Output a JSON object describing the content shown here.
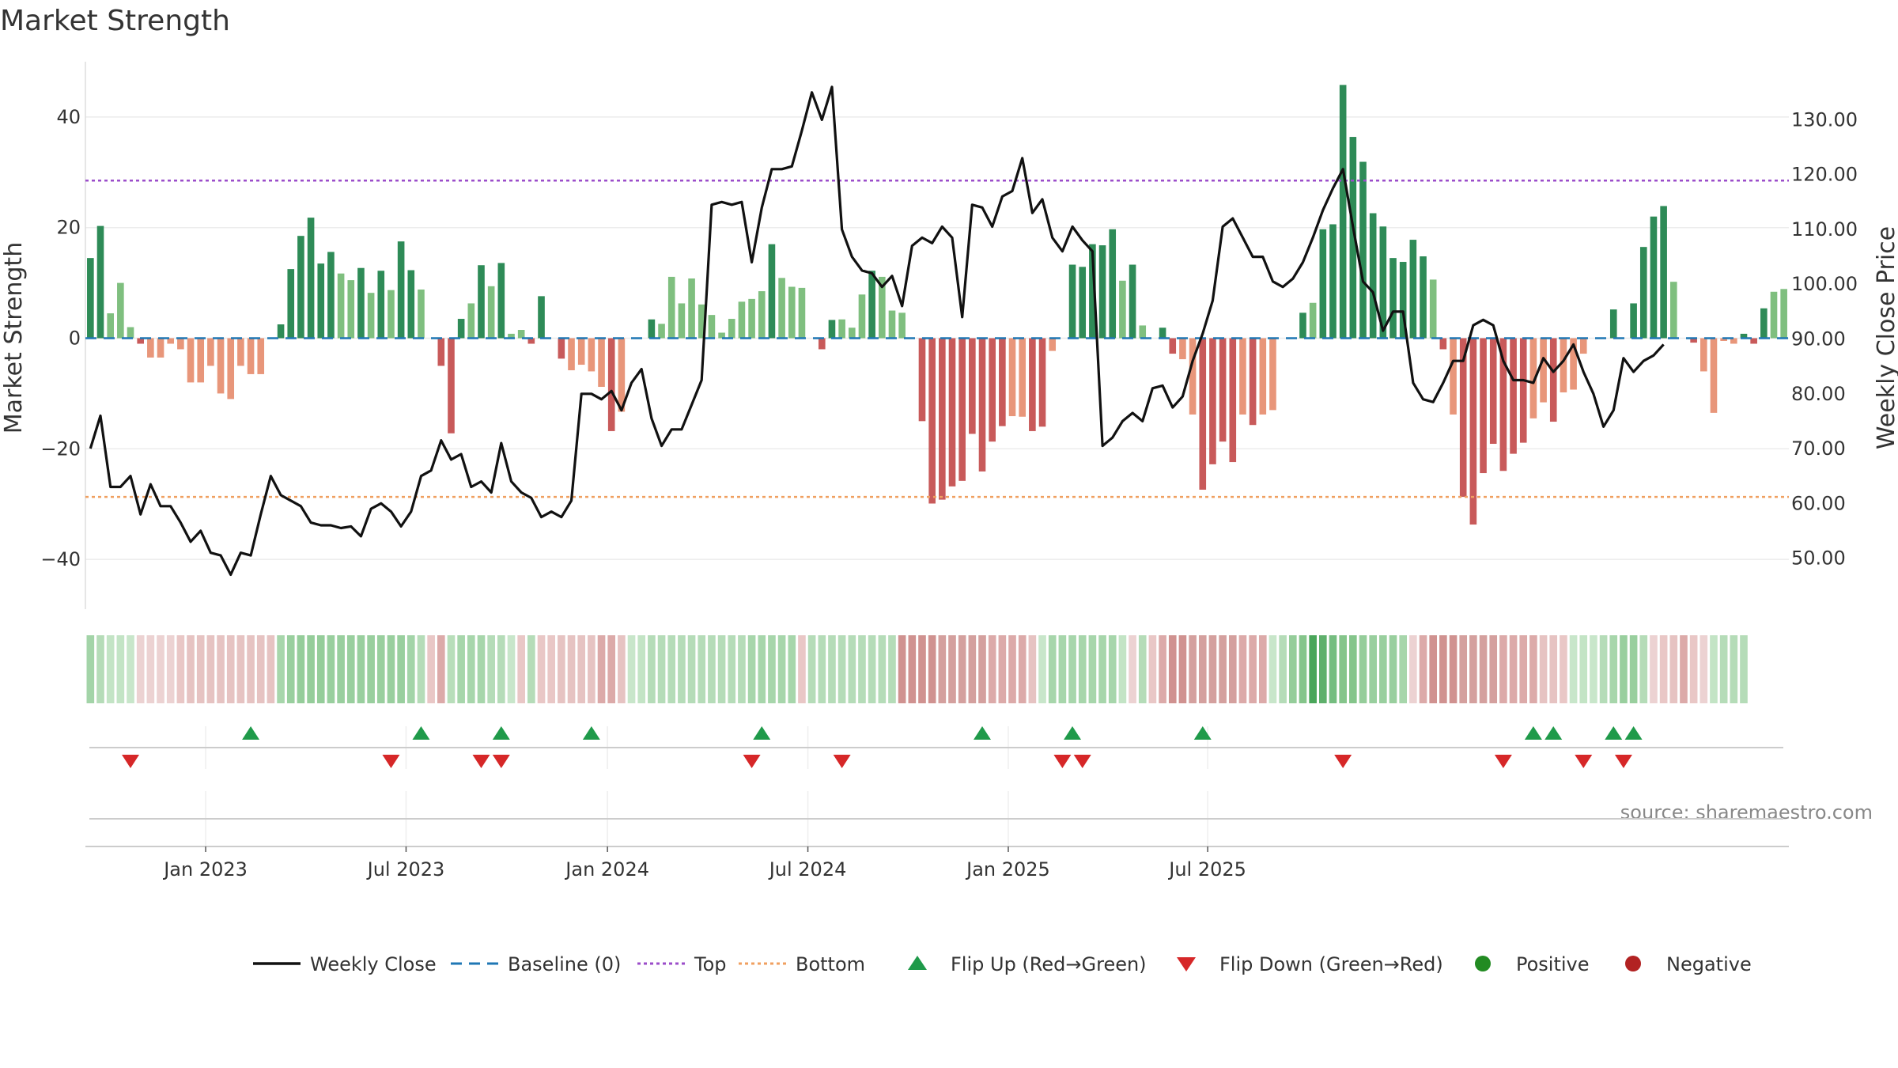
{
  "chart_data": {
    "type": "bar",
    "title": "Market Strength",
    "ylabel_left": "Market Strength",
    "ylabel_right": "Weekly Close Price",
    "ylim_left": [
      -49,
      50
    ],
    "yticks_left": [
      -40,
      -20,
      0,
      20,
      40
    ],
    "ytick_labels_left": [
      "−40",
      "−20",
      "0",
      "20",
      "40"
    ],
    "ylim_right": [
      40.7,
      140.6
    ],
    "yticks_right": [
      50,
      60,
      70,
      80,
      90,
      100,
      110,
      120,
      130
    ],
    "ytick_labels_right": [
      "50.00",
      "60.00",
      "70.00",
      "80.00",
      "90.00",
      "100.00",
      "110.00",
      "120.00",
      "130.00"
    ],
    "top_level": 28.5,
    "bottom_level": -28.7,
    "baseline": 0,
    "x_tick_index": [
      11.5,
      31.5,
      51.6,
      71.6,
      91.6,
      111.5
    ],
    "x_tick_labels": [
      "Jan 2023",
      "Jul 2023",
      "Jan 2024",
      "Jul 2024",
      "Jan 2025",
      "Jul 2025"
    ],
    "strength": [
      14.5,
      20.3,
      4.5,
      10,
      2,
      -1,
      -3.5,
      -3.5,
      -1,
      -2,
      -8,
      -8,
      -5,
      -10,
      -11,
      -5,
      -6.5,
      -6.5,
      0,
      2.5,
      12.5,
      18.5,
      21.8,
      13.5,
      15.6,
      11.7,
      10.5,
      12.7,
      8.2,
      12.2,
      8.7,
      17.5,
      12.3,
      8.8,
      0,
      -5,
      -17.2,
      3.5,
      6.3,
      13.2,
      9.4,
      13.6,
      0.8,
      1.5,
      -1,
      7.6,
      0,
      -3.7,
      -5.8,
      -4.8,
      -6,
      -8.8,
      -16.8,
      -13.3,
      0,
      0,
      3.4,
      2.6,
      11.1,
      6.3,
      10.8,
      6.1,
      4.2,
      1,
      3.5,
      6.6,
      7.1,
      8.5,
      17,
      10.9,
      9.3,
      9.1,
      0,
      -2,
      3.3,
      3.4,
      1.9,
      7.9,
      12.2,
      11.1,
      5,
      4.6,
      0,
      -15,
      -29.9,
      -29.2,
      -26.8,
      -25.8,
      -17.3,
      -24.1,
      -18.7,
      -15.9,
      -14.1,
      -14.2,
      -16.8,
      -16,
      -2.3,
      0,
      13.3,
      12.9,
      17,
      16.8,
      19.7,
      10.4,
      13.3,
      2.3,
      0,
      1.9,
      -2.8,
      -3.8,
      -13.8,
      -27.4,
      -22.8,
      -18.7,
      -22.4,
      -13.8,
      -15.7,
      -13.8,
      -13,
      0,
      0,
      4.6,
      6.4,
      19.7,
      20.6,
      45.8,
      36.4,
      31.9,
      22.6,
      20.2,
      14.5,
      13.8,
      17.8,
      14.8,
      10.6,
      -2,
      -13.8,
      -28.7,
      -33.7,
      -24.4,
      -19.1,
      -24,
      -20.9,
      -18.9,
      -14.5,
      -11.6,
      -15.1,
      -9.8,
      -9.3,
      -2.8,
      0,
      0,
      5.2,
      0,
      6.3,
      16.5,
      22,
      23.9,
      10.2,
      0,
      -0.8,
      -6,
      -13.5,
      -0.5,
      -1,
      0.8,
      -1,
      5.4,
      8.4,
      8.9
    ],
    "close": [
      70,
      76,
      63,
      63,
      65,
      58,
      63.5,
      59.5,
      59.5,
      56.5,
      53,
      55,
      51,
      50.5,
      47,
      51,
      50.5,
      58,
      65,
      61.5,
      60.5,
      59.5,
      56.5,
      56,
      56,
      55.5,
      55.8,
      54,
      59,
      60,
      58.5,
      55.8,
      58.5,
      65,
      66,
      71.5,
      68,
      69,
      63,
      64,
      62,
      71,
      64,
      62,
      61,
      57.5,
      58.5,
      57.5,
      60.5,
      80,
      80,
      79,
      80.5,
      77,
      82,
      84.5,
      75.5,
      70.5,
      73.5,
      73.5,
      78,
      82.5,
      114.5,
      115,
      114.5,
      115,
      104,
      114,
      121,
      121,
      121.5,
      128,
      135,
      130,
      136,
      110,
      105,
      102.5,
      102,
      99.5,
      101.5,
      96,
      107,
      108.5,
      107.5,
      110.5,
      108.5,
      94,
      114.5,
      114,
      110.5,
      116,
      117,
      123,
      113,
      115.5,
      108.5,
      106,
      110.5,
      108,
      106,
      70.5,
      72,
      75,
      76.5,
      75,
      81,
      81.5,
      77.5,
      79.5,
      86,
      91,
      97,
      110.5,
      112,
      108.5,
      105,
      105,
      100.5,
      99.5,
      101,
      104,
      108.5,
      113.5,
      117.5,
      121,
      110.5,
      100.5,
      98.5,
      91.5,
      95,
      95,
      82,
      79,
      78.5,
      82,
      86,
      86,
      92.5,
      93.5,
      92.5,
      86,
      82.5,
      82.5,
      82,
      86.5,
      84,
      86,
      89,
      84,
      80,
      74,
      77,
      86.5,
      84,
      86,
      87,
      89
    ],
    "strip_colors": [
      "#a3d4a8",
      "#b5dcb8",
      "#c3e4c5",
      "#c3e4c5",
      "#c8e6ca",
      "#ecd2d2",
      "#ecd2d2",
      "#ecd2d2",
      "#ecd2d2",
      "#e9c7c6",
      "#e6c3c2",
      "#e6c3c2",
      "#e6c3c2",
      "#e6c3c2",
      "#e6c3c2",
      "#e6c3c2",
      "#e6c3c2",
      "#e6c3c2",
      "#e6c3c2",
      "#a7d6ab",
      "#99cf9e",
      "#95cd9a",
      "#95cd9a",
      "#95cd9a",
      "#99cf9e",
      "#99cf9e",
      "#99cf9e",
      "#99cf9e",
      "#99cf9e",
      "#99cf9e",
      "#99cf9e",
      "#99cf9e",
      "#a3d4a8",
      "#b5dcb8",
      "#e9c7c6",
      "#dcaaa9",
      "#b8deba",
      "#a7d6ab",
      "#a7d6ab",
      "#a7d6ab",
      "#b5dcb8",
      "#b5dcb8",
      "#c8e6ca",
      "#e9c7c6",
      "#b5dcb8",
      "#e9c7c6",
      "#e9c7c6",
      "#e6c3c2",
      "#e6c3c2",
      "#e6c3c2",
      "#e6c3c2",
      "#dcaaa9",
      "#dcaaa9",
      "#e6c3c2",
      "#c8e6ca",
      "#c3e4c5",
      "#b5dcb8",
      "#b5dcb8",
      "#b5dcb8",
      "#b5dcb8",
      "#b5dcb8",
      "#b5dcb8",
      "#b5dcb8",
      "#b5dcb8",
      "#b5dcb8",
      "#b5dcb8",
      "#a7d6ab",
      "#a7d6ab",
      "#a7d6ab",
      "#a7d6ab",
      "#a7d6ab",
      "#e9c7c6",
      "#b5dcb8",
      "#b5dcb8",
      "#b5dcb8",
      "#b5dcb8",
      "#b5dcb8",
      "#b5dcb8",
      "#b5dcb8",
      "#b5dcb8",
      "#b5dcb8",
      "#d09290",
      "#d09290",
      "#d09290",
      "#d09290",
      "#d4a09e",
      "#d4a09e",
      "#d4a09e",
      "#d4a09e",
      "#d4a09e",
      "#dcaaa9",
      "#dcaaa9",
      "#dcaaa9",
      "#dcaaa9",
      "#e6c3c2",
      "#c8e6ca",
      "#a7d6ab",
      "#a7d6ab",
      "#a7d6ab",
      "#a7d6ab",
      "#a7d6ab",
      "#a7d6ab",
      "#a7d6ab",
      "#c3e4c5",
      "#ecd2d2",
      "#b5dcb8",
      "#e9c7c6",
      "#dcaaa9",
      "#d09290",
      "#d09290",
      "#d4a09e",
      "#d4a09e",
      "#d4a09e",
      "#d4a09e",
      "#d4a09e",
      "#dcaaa9",
      "#dcaaa9",
      "#dcaaa9",
      "#c8e6ca",
      "#b5dcb8",
      "#95cd9a",
      "#85c58b",
      "#4aa65a",
      "#5fb06c",
      "#75bd80",
      "#85c58b",
      "#85c58b",
      "#95cd9a",
      "#99cf9e",
      "#99cf9e",
      "#99cf9e",
      "#a7d6ab",
      "#ecd2d2",
      "#dcaaa9",
      "#d09290",
      "#d09290",
      "#d09290",
      "#d4a09e",
      "#d4a09e",
      "#d4a09e",
      "#d4a09e",
      "#dcaaa9",
      "#dcaaa9",
      "#dcaaa9",
      "#dcaaa9",
      "#e6c3c2",
      "#e6c3c2",
      "#e9c7c6",
      "#c8e6ca",
      "#c3e4c5",
      "#c8e6ca",
      "#b5dcb8",
      "#a7d6ab",
      "#99cf9e",
      "#99cf9e",
      "#b5dcb8",
      "#ecd2d2",
      "#e9c7c6",
      "#e6c3c2",
      "#dcaaa9",
      "#e9c7c6",
      "#ecd2d2",
      "#c3e4c5",
      "#b5dcb8",
      "#b5dcb8",
      "#b5dcb8"
    ],
    "flip_up_index": [
      16,
      33,
      41,
      50,
      67,
      89,
      98,
      111,
      144,
      146,
      152,
      154
    ],
    "flip_down_index": [
      4,
      30,
      39,
      41,
      66,
      75,
      97,
      99,
      125,
      141,
      149,
      153
    ],
    "source": "source: sharemaestro.com",
    "legend": [
      {
        "label": "Weekly Close",
        "kind": "line",
        "color": "#111111"
      },
      {
        "label": "Baseline (0)",
        "kind": "dash",
        "color": "#1f77b4"
      },
      {
        "label": "Top",
        "kind": "dot",
        "color": "#9b4dca"
      },
      {
        "label": "Bottom",
        "kind": "dot",
        "color": "#f0a060"
      },
      {
        "label": "Flip Up (Red→Green)",
        "kind": "tri-up",
        "color": "#1f9a4a"
      },
      {
        "label": "Flip Down (Green→Red)",
        "kind": "tri-down",
        "color": "#d62728"
      },
      {
        "label": "Positive",
        "kind": "circle",
        "color": "#228b22"
      },
      {
        "label": "Negative",
        "kind": "circle",
        "color": "#b22222"
      }
    ],
    "colors": {
      "pos_dark": "#2e8b57",
      "pos_light": "#7fbf7f",
      "neg_dark": "#c85a5a",
      "neg_light": "#e8967a",
      "baseline": "#1f77b4",
      "top": "#9b4dca",
      "bottom": "#f0a060",
      "close": "#111111"
    }
  }
}
